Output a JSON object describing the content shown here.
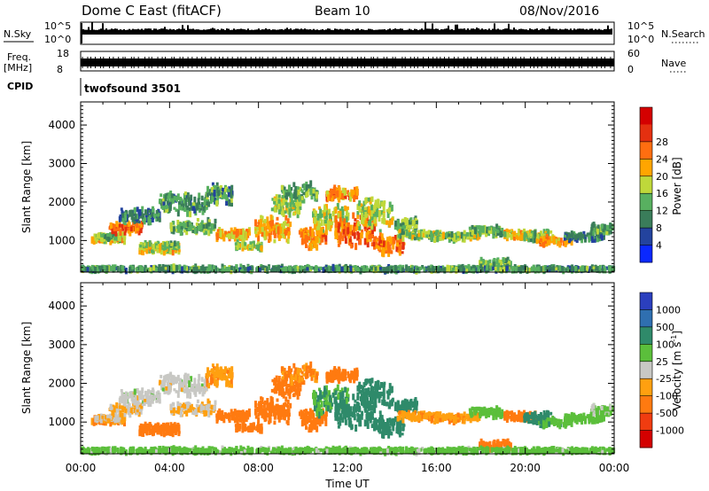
{
  "header": {
    "station": "Dome C East (fitACF)",
    "beam": "Beam 10",
    "date": "08/Nov/2016"
  },
  "noise_panel": {
    "left_label": "N.Sky",
    "right_label": "N.Search",
    "left_ticks": [
      "10^5",
      "10^0"
    ],
    "right_ticks": [
      "10^5",
      "10^0"
    ]
  },
  "freq_panel": {
    "left_label_1": "Freq.",
    "left_label_2": "[MHz]",
    "left_ticks": [
      "18",
      "8"
    ],
    "right_label": "Nave",
    "right_ticks": [
      "60",
      "0"
    ]
  },
  "cpid_panel": {
    "label": "CPID",
    "program": "twofsound 3501"
  },
  "colors": {
    "power": [
      "#0a28ff",
      "#23439e",
      "#3a7d5a",
      "#58b060",
      "#bfd83a",
      "#ffa500",
      "#ff6e10",
      "#e43010",
      "#d40000"
    ],
    "velocity": [
      "#2b3fbe",
      "#2f6fb0",
      "#2f8a6a",
      "#5bbf3b",
      "#c8c8c4",
      "#ffa010",
      "#ff7a10",
      "#f03c10",
      "#d40000"
    ]
  },
  "chart_data": [
    {
      "type": "heatmap",
      "title": "",
      "xlabel": "",
      "ylabel": "Slant Range [km]",
      "xlim": [
        "00:00",
        "00:00"
      ],
      "ylim": [
        180,
        4600
      ],
      "yticks": [
        1000,
        2000,
        3000,
        4000
      ],
      "colorbar": {
        "label": "Power [dB]",
        "ticks": [
          "4",
          "8",
          "12",
          "16",
          "20",
          "24",
          "28"
        ],
        "range": [
          0,
          32
        ]
      }
    },
    {
      "type": "heatmap",
      "title": "",
      "xlabel": "Time UT",
      "ylabel": "Slant Range [km]",
      "xlim": [
        "00:00",
        "00:00"
      ],
      "xticks": [
        "00:00",
        "04:00",
        "08:00",
        "12:00",
        "16:00",
        "20:00",
        "00:00"
      ],
      "ylim": [
        180,
        4600
      ],
      "yticks": [
        1000,
        2000,
        3000,
        4000
      ],
      "colorbar": {
        "label": "Velocity [m s^-1]",
        "ticks": [
          "1000",
          "500",
          "100",
          "25",
          "-25",
          "-100",
          "-500",
          "-1000"
        ]
      }
    }
  ],
  "axis_texts": {
    "ylabel_top": "Slant Range [km]",
    "ylabel_bottom": "Slant Range [km]",
    "cb_power": "Power [dB]",
    "cb_vel": "Velocity [m s",
    "cb_vel_exp": "-1",
    "cb_vel_close": "]",
    "xlabel": "Time UT"
  },
  "clusters": [
    {
      "t": 1.2,
      "dt": 1.5,
      "r": 1050,
      "dr": 120,
      "p": 20,
      "v": -100
    },
    {
      "t": 1.2,
      "dt": 1.2,
      "r": 1100,
      "dr": 80,
      "p": 14,
      "v": -25
    },
    {
      "t": 2.0,
      "dt": 1.5,
      "r": 1320,
      "dr": 160,
      "p": 26,
      "v": -25
    },
    {
      "t": 2.6,
      "dt": 1.8,
      "r": 1650,
      "dr": 200,
      "p": 10,
      "v": 0
    },
    {
      "t": 3.5,
      "dt": 1.8,
      "r": 780,
      "dr": 120,
      "p": 20,
      "v": -300
    },
    {
      "t": 3.5,
      "dt": 1.8,
      "r": 860,
      "dr": 80,
      "p": 16,
      "v": -250
    },
    {
      "t": 4.6,
      "dt": 2.2,
      "r": 1950,
      "dr": 300,
      "p": 12,
      "v": 0
    },
    {
      "t": 5.0,
      "dt": 2.0,
      "r": 1350,
      "dr": 200,
      "p": 14,
      "v": -20
    },
    {
      "t": 6.2,
      "dt": 1.2,
      "r": 2200,
      "dr": 300,
      "p": 12,
      "v": -80
    },
    {
      "t": 6.8,
      "dt": 1.5,
      "r": 1150,
      "dr": 150,
      "p": 22,
      "v": -200
    },
    {
      "t": 7.5,
      "dt": 1.2,
      "r": 850,
      "dr": 100,
      "p": 18,
      "v": -250
    },
    {
      "t": 8.6,
      "dt": 1.6,
      "r": 1300,
      "dr": 350,
      "p": 22,
      "v": -300
    },
    {
      "t": 9.2,
      "dt": 1.3,
      "r": 1900,
      "dr": 300,
      "p": 18,
      "v": -250
    },
    {
      "t": 9.8,
      "dt": 1.6,
      "r": 2250,
      "dr": 250,
      "p": 14,
      "v": -120
    },
    {
      "t": 10.4,
      "dt": 1.2,
      "r": 1050,
      "dr": 300,
      "p": 24,
      "v": -350
    },
    {
      "t": 11.2,
      "dt": 1.6,
      "r": 1550,
      "dr": 400,
      "p": 18,
      "v": 100
    },
    {
      "t": 11.7,
      "dt": 1.4,
      "r": 2200,
      "dr": 200,
      "p": 24,
      "v": -200
    },
    {
      "t": 12.3,
      "dt": 1.8,
      "r": 1250,
      "dr": 450,
      "p": 26,
      "v": 300
    },
    {
      "t": 13.2,
      "dt": 1.6,
      "r": 1700,
      "dr": 450,
      "p": 18,
      "v": 350
    },
    {
      "t": 13.8,
      "dt": 1.4,
      "r": 900,
      "dr": 280,
      "p": 26,
      "v": 250
    },
    {
      "t": 14.6,
      "dt": 1.0,
      "r": 1400,
      "dr": 220,
      "p": 14,
      "v": 200
    },
    {
      "t": 15.2,
      "dt": 2.0,
      "r": 1150,
      "dr": 120,
      "p": 16,
      "v": -80
    },
    {
      "t": 16.8,
      "dt": 2.2,
      "r": 1100,
      "dr": 130,
      "p": 16,
      "v": -80
    },
    {
      "t": 18.2,
      "dt": 1.5,
      "r": 1250,
      "dr": 120,
      "p": 14,
      "v": 60
    },
    {
      "t": 18.6,
      "dt": 1.4,
      "r": 400,
      "dr": 120,
      "p": 14,
      "v": -200
    },
    {
      "t": 19.7,
      "dt": 1.4,
      "r": 1150,
      "dr": 120,
      "p": 20,
      "v": -300
    },
    {
      "t": 20.5,
      "dt": 1.2,
      "r": 1100,
      "dr": 150,
      "p": 16,
      "v": 300
    },
    {
      "t": 21.3,
      "dt": 1.5,
      "r": 1000,
      "dr": 120,
      "p": 24,
      "v": 80
    },
    {
      "t": 22.6,
      "dt": 1.8,
      "r": 1100,
      "dr": 120,
      "p": 10,
      "v": 60
    },
    {
      "t": 23.4,
      "dt": 1.0,
      "r": 1300,
      "dr": 150,
      "p": 12,
      "v": 40
    },
    {
      "t": 12.0,
      "dt": 24.0,
      "r": 260,
      "dr": 60,
      "p": 12,
      "v": 50
    }
  ]
}
